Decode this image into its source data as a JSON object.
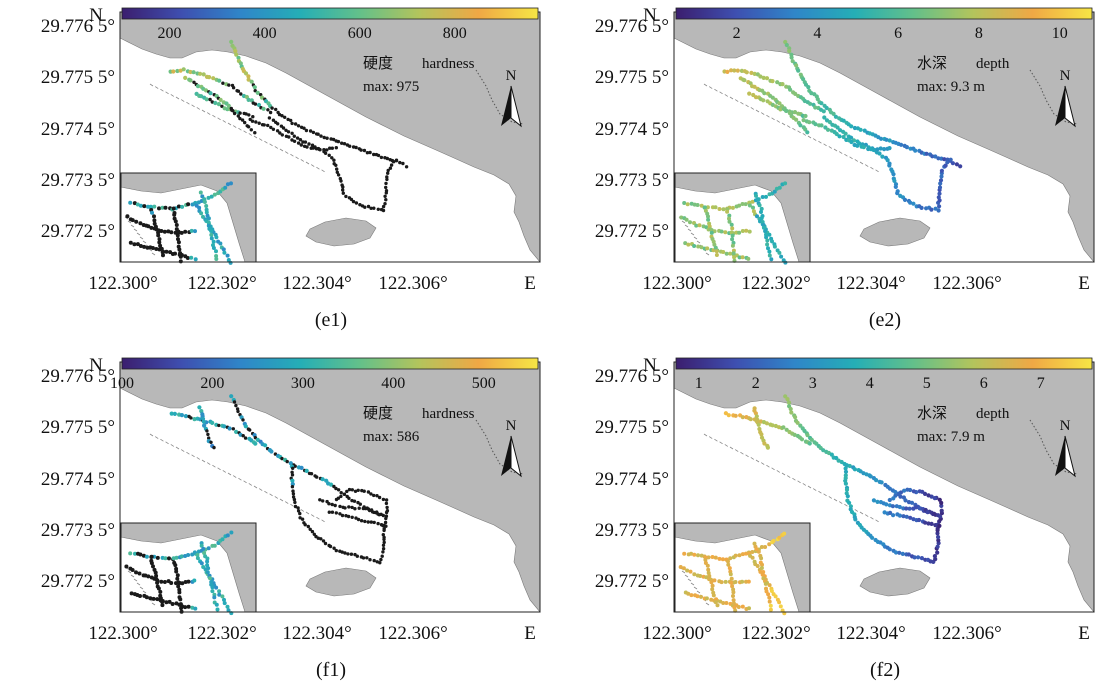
{
  "axes": {
    "x_ticks": [
      "122.300°",
      "122.302°",
      "122.304°",
      "122.306°"
    ],
    "x_dir": "E",
    "y_ticks": [
      "29.776 5°",
      "29.775 5°",
      "29.774 5°",
      "29.773 5°",
      "29.772 5°"
    ],
    "y_dir": "N",
    "north_label": "N"
  },
  "colormap": [
    "#3b1e6e",
    "#3e4fb0",
    "#2f86c9",
    "#25aeb6",
    "#63c08a",
    "#b3c45c",
    "#f0a845",
    "#f6e645"
  ],
  "panels": [
    {
      "id": "e1",
      "caption": "(e1)",
      "label_cn": "硬度",
      "label_en": "hardness",
      "max_text": "max: 975",
      "cb_ticks": [
        "200",
        "400",
        "600",
        "800"
      ],
      "cb_range": [
        100,
        975
      ],
      "cb_tick_values": [
        200,
        400,
        600,
        800
      ]
    },
    {
      "id": "e2",
      "caption": "(e2)",
      "label_cn": "水深",
      "label_en": "depth",
      "max_text": "max: 9.3 m",
      "cb_ticks": [
        "2",
        "4",
        "6",
        "8",
        "10"
      ],
      "cb_range": [
        0.5,
        10.8
      ],
      "cb_tick_values": [
        2,
        4,
        6,
        8,
        10
      ]
    },
    {
      "id": "f1",
      "caption": "(f1)",
      "label_cn": "硬度",
      "label_en": "hardness",
      "max_text": "max: 586",
      "cb_ticks": [
        "100",
        "200",
        "300",
        "400",
        "500"
      ],
      "cb_range": [
        100,
        560
      ],
      "cb_tick_values": [
        100,
        200,
        300,
        400,
        500
      ]
    },
    {
      "id": "f2",
      "caption": "(f2)",
      "label_cn": "水深",
      "label_en": "depth",
      "max_text": "max: 7.9 m",
      "cb_ticks": [
        "1",
        "2",
        "3",
        "4",
        "5",
        "6",
        "7"
      ],
      "cb_range": [
        0.6,
        7.9
      ],
      "cb_tick_values": [
        1,
        2,
        3,
        4,
        5,
        6,
        7
      ]
    }
  ]
}
